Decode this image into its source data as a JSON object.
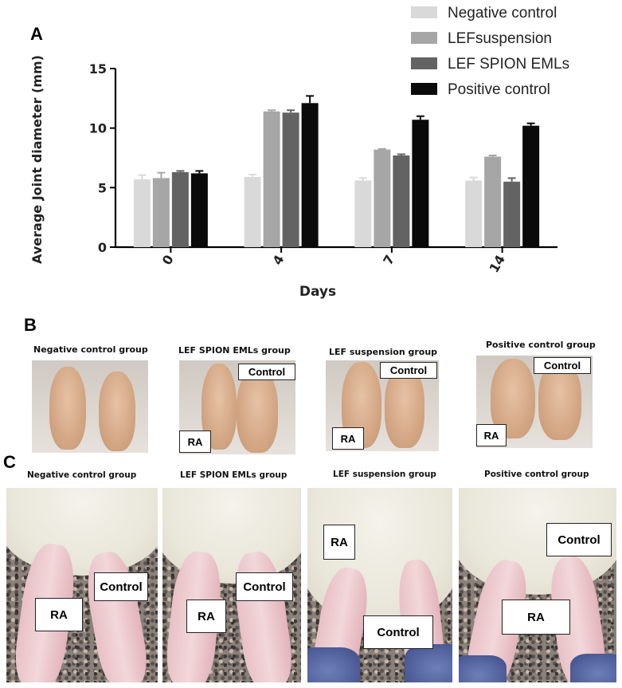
{
  "panels": {
    "a_letter": "A",
    "b_letter": "B",
    "c_letter": "C"
  },
  "chart_data": {
    "type": "bar",
    "xlabel": "Days",
    "ylabel": "Average Joint diameter (mm)",
    "categories": [
      "0",
      "4",
      "7",
      "14"
    ],
    "ylim": [
      0,
      15
    ],
    "yticks": [
      0,
      5,
      10,
      15
    ],
    "legend_position": "top-right",
    "series": [
      {
        "name": "Negative control",
        "color": "#d9d9d9",
        "values": [
          5.7,
          5.9,
          5.6,
          5.6
        ],
        "errors": [
          0.35,
          0.2,
          0.2,
          0.25
        ]
      },
      {
        "name": "LEFsuspension",
        "color": "#a6a6a6",
        "values": [
          5.8,
          11.4,
          8.2,
          7.6
        ],
        "errors": [
          0.45,
          0.1,
          0.05,
          0.1
        ]
      },
      {
        "name": "LEF SPION EMLs",
        "color": "#636363",
        "values": [
          6.3,
          11.3,
          7.7,
          5.5
        ],
        "errors": [
          0.1,
          0.2,
          0.1,
          0.3
        ]
      },
      {
        "name": "Positive control",
        "color": "#0a0a0a",
        "values": [
          6.2,
          12.1,
          10.7,
          10.2
        ],
        "errors": [
          0.2,
          0.6,
          0.3,
          0.2
        ]
      }
    ]
  },
  "panel_b": {
    "captions": [
      "Negative control group",
      "LEF SPION EMLs group",
      "LEF suspension group",
      "Positive  control group"
    ],
    "tags": {
      "control": "Control",
      "ra": "RA"
    }
  },
  "panel_c": {
    "captions": [
      "Negative control group",
      "LEF SPION EMLs group",
      "LEF suspension group",
      "Positive  control group"
    ],
    "tags": {
      "control": "Control",
      "ra": "RA"
    }
  }
}
